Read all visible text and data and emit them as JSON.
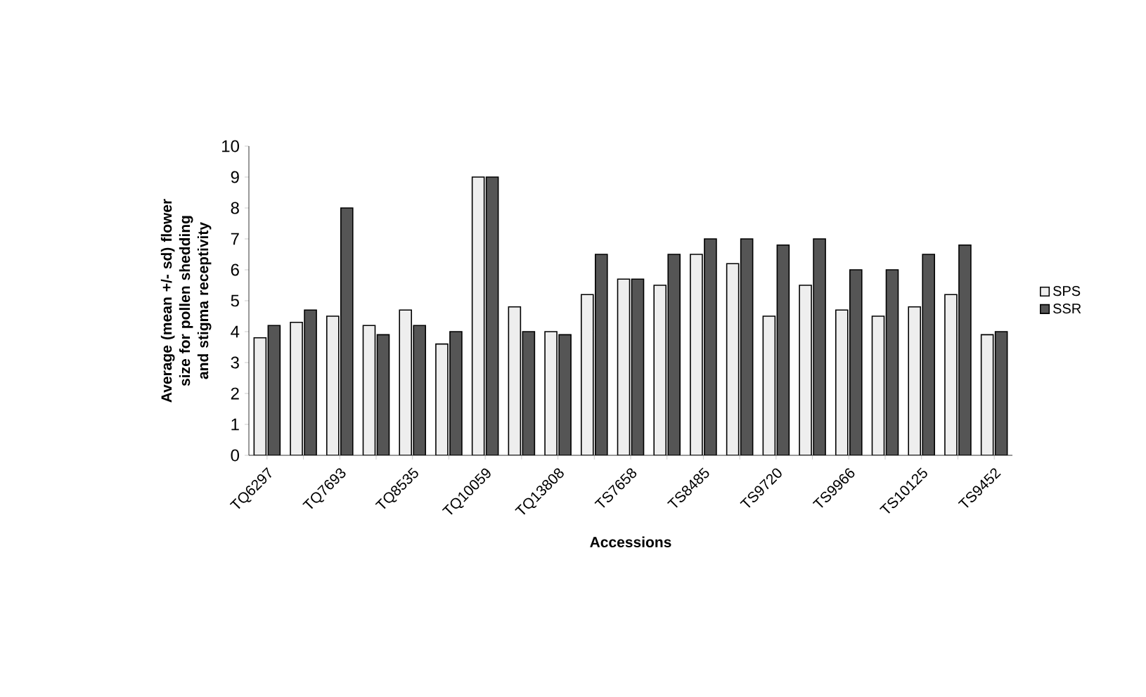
{
  "chart_data": {
    "type": "bar",
    "xlabel": "Accessions",
    "ylabel": "Average (mean +/- sd) flower size for pollen shedding and stigma receptivity",
    "categories": [
      "TQ6297",
      null,
      "TQ7693",
      null,
      "TQ8535",
      null,
      "TQ10059",
      null,
      "TQ13808",
      null,
      "TS7658",
      null,
      "TS8485",
      null,
      "TS9720",
      null,
      "TS9966",
      null,
      "TS10125",
      null,
      "TS9452"
    ],
    "series": [
      {
        "name": "SPS",
        "color": "#eeeeee",
        "values": [
          3.8,
          4.3,
          4.5,
          4.2,
          4.7,
          3.6,
          9.0,
          4.8,
          4.0,
          5.2,
          5.7,
          5.5,
          6.5,
          6.2,
          4.5,
          5.5,
          4.7,
          4.5,
          4.8,
          5.2,
          3.9
        ]
      },
      {
        "name": "SSR",
        "color": "#555555",
        "values": [
          4.2,
          4.7,
          8.0,
          3.9,
          4.2,
          4.0,
          9.0,
          4.0,
          3.9,
          6.5,
          5.7,
          6.5,
          7.0,
          7.0,
          6.8,
          7.0,
          6.0,
          6.0,
          6.5,
          6.8,
          4.0
        ]
      }
    ],
    "ylim": [
      0,
      10
    ],
    "yticks": [
      0,
      1,
      2,
      3,
      4,
      5,
      6,
      7,
      8,
      9,
      10
    ],
    "grid": false,
    "legend": "right"
  }
}
